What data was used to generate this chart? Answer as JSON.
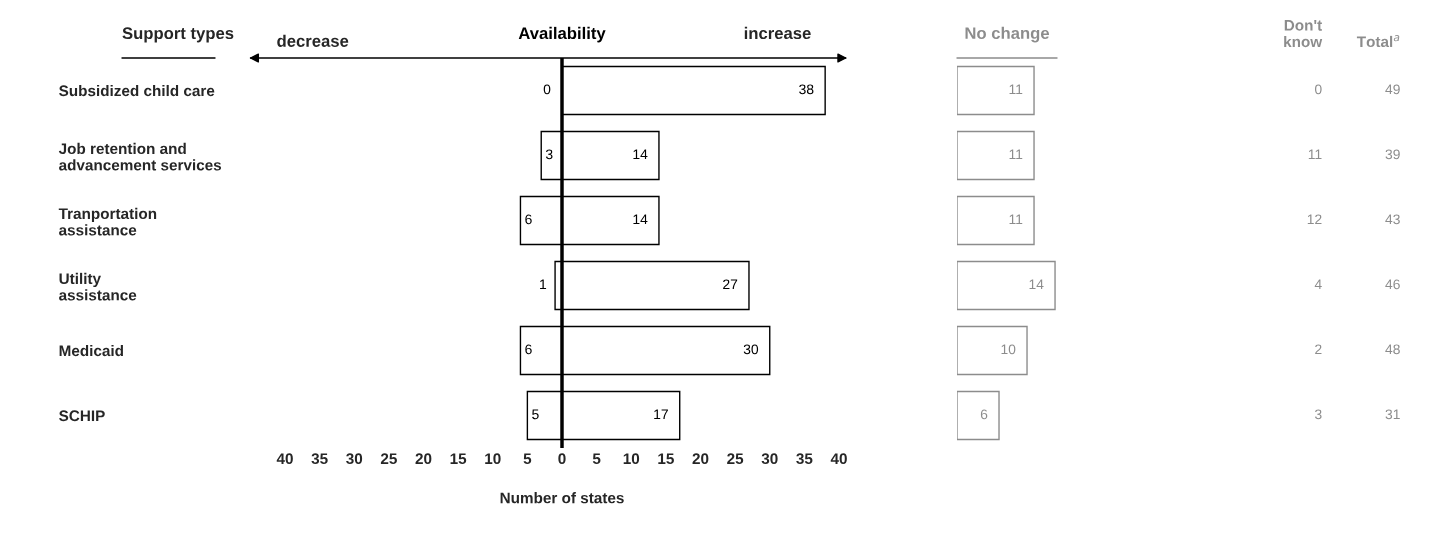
{
  "chart_data": [
    {
      "type": "bar",
      "orientation": "horizontal",
      "title": "Availability",
      "xlabel": "Number of states",
      "ylabel": "Support types",
      "annotations": [
        "decrease",
        "increase"
      ],
      "categories": [
        "Subsidized child care",
        "Job retention and\nadvancement services",
        "Tranportation\nassistance",
        "Utility\nassistance",
        "Medicaid",
        "SCHIP"
      ],
      "series": [
        {
          "color": "#ffffff",
          "values": [
            0,
            3,
            6,
            1,
            6,
            5
          ],
          "base": [
            null,
            -3,
            -6,
            -1,
            -6,
            -5
          ]
        },
        {
          "color": "#ffffff",
          "values": [
            38,
            14,
            14,
            27,
            30,
            17
          ]
        }
      ],
      "data_labels": true,
      "xlim": [
        -40,
        40
      ],
      "xticks": [
        {
          "value": -40,
          "label": "40"
        },
        {
          "value": -35,
          "label": "35"
        },
        {
          "value": -30,
          "label": "30"
        },
        {
          "value": -25,
          "label": "25"
        },
        {
          "value": -20,
          "label": "20"
        },
        {
          "value": -15,
          "label": "15"
        },
        {
          "value": -10,
          "label": "10"
        },
        {
          "value": -5,
          "label": "5"
        },
        0,
        5,
        10,
        15,
        20,
        25,
        30,
        35,
        40
      ],
      "ref_lines": [
        {
          "axis": "x",
          "value": 0,
          "color": "#000000"
        }
      ],
      "grid": false,
      "legend": false
    },
    {
      "type": "bar",
      "orientation": "horizontal",
      "title": "No change",
      "categories": [
        null,
        null,
        null,
        null,
        null,
        null
      ],
      "series": [
        {
          "color": "#ffffff",
          "values": [
            11,
            11,
            11,
            14,
            10,
            6
          ]
        }
      ],
      "data_labels": true
    },
    {
      "type": "heatmap",
      "categories": [
        "Don't\nknow",
        "Total$^{a}$"
      ],
      "y_categories": [
        null,
        null,
        null,
        null,
        null,
        null
      ],
      "cells": [
        [
          0,
          49
        ],
        [
          11,
          39
        ],
        [
          12,
          43
        ],
        [
          4,
          46
        ],
        [
          2,
          48
        ],
        [
          3,
          31
        ]
      ],
      "data_labels": true
    }
  ]
}
